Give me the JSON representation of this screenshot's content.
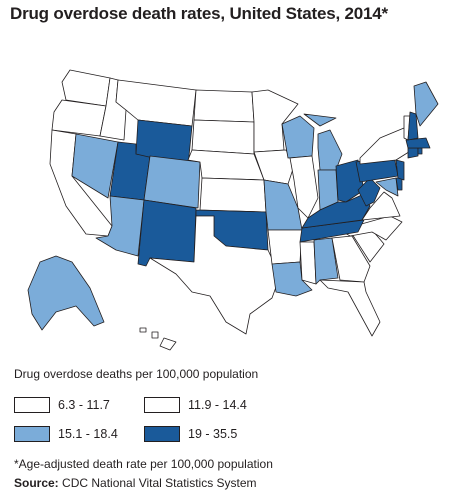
{
  "title": "Drug overdose death rates, United States, 2014*",
  "colors": {
    "class_0": "#ffffff",
    "class_1": "#ffffff",
    "class_2": "#7bacd9",
    "class_3": "#1a5a9a",
    "border": "#231f20"
  },
  "legend": {
    "title": "Drug overdose deaths per 100,000 population",
    "items": [
      {
        "label": "6.3 - 11.7",
        "color": "#ffffff"
      },
      {
        "label": "11.9 - 14.4",
        "color": "#ffffff"
      },
      {
        "label": "15.1 - 18.4",
        "color": "#7bacd9"
      },
      {
        "label": "19 - 35.5",
        "color": "#1a5a9a"
      }
    ]
  },
  "footnote": "*Age-adjusted death rate per 100,000 population",
  "source": {
    "label": "Source:",
    "text": " CDC National Vital Statistics System"
  }
}
